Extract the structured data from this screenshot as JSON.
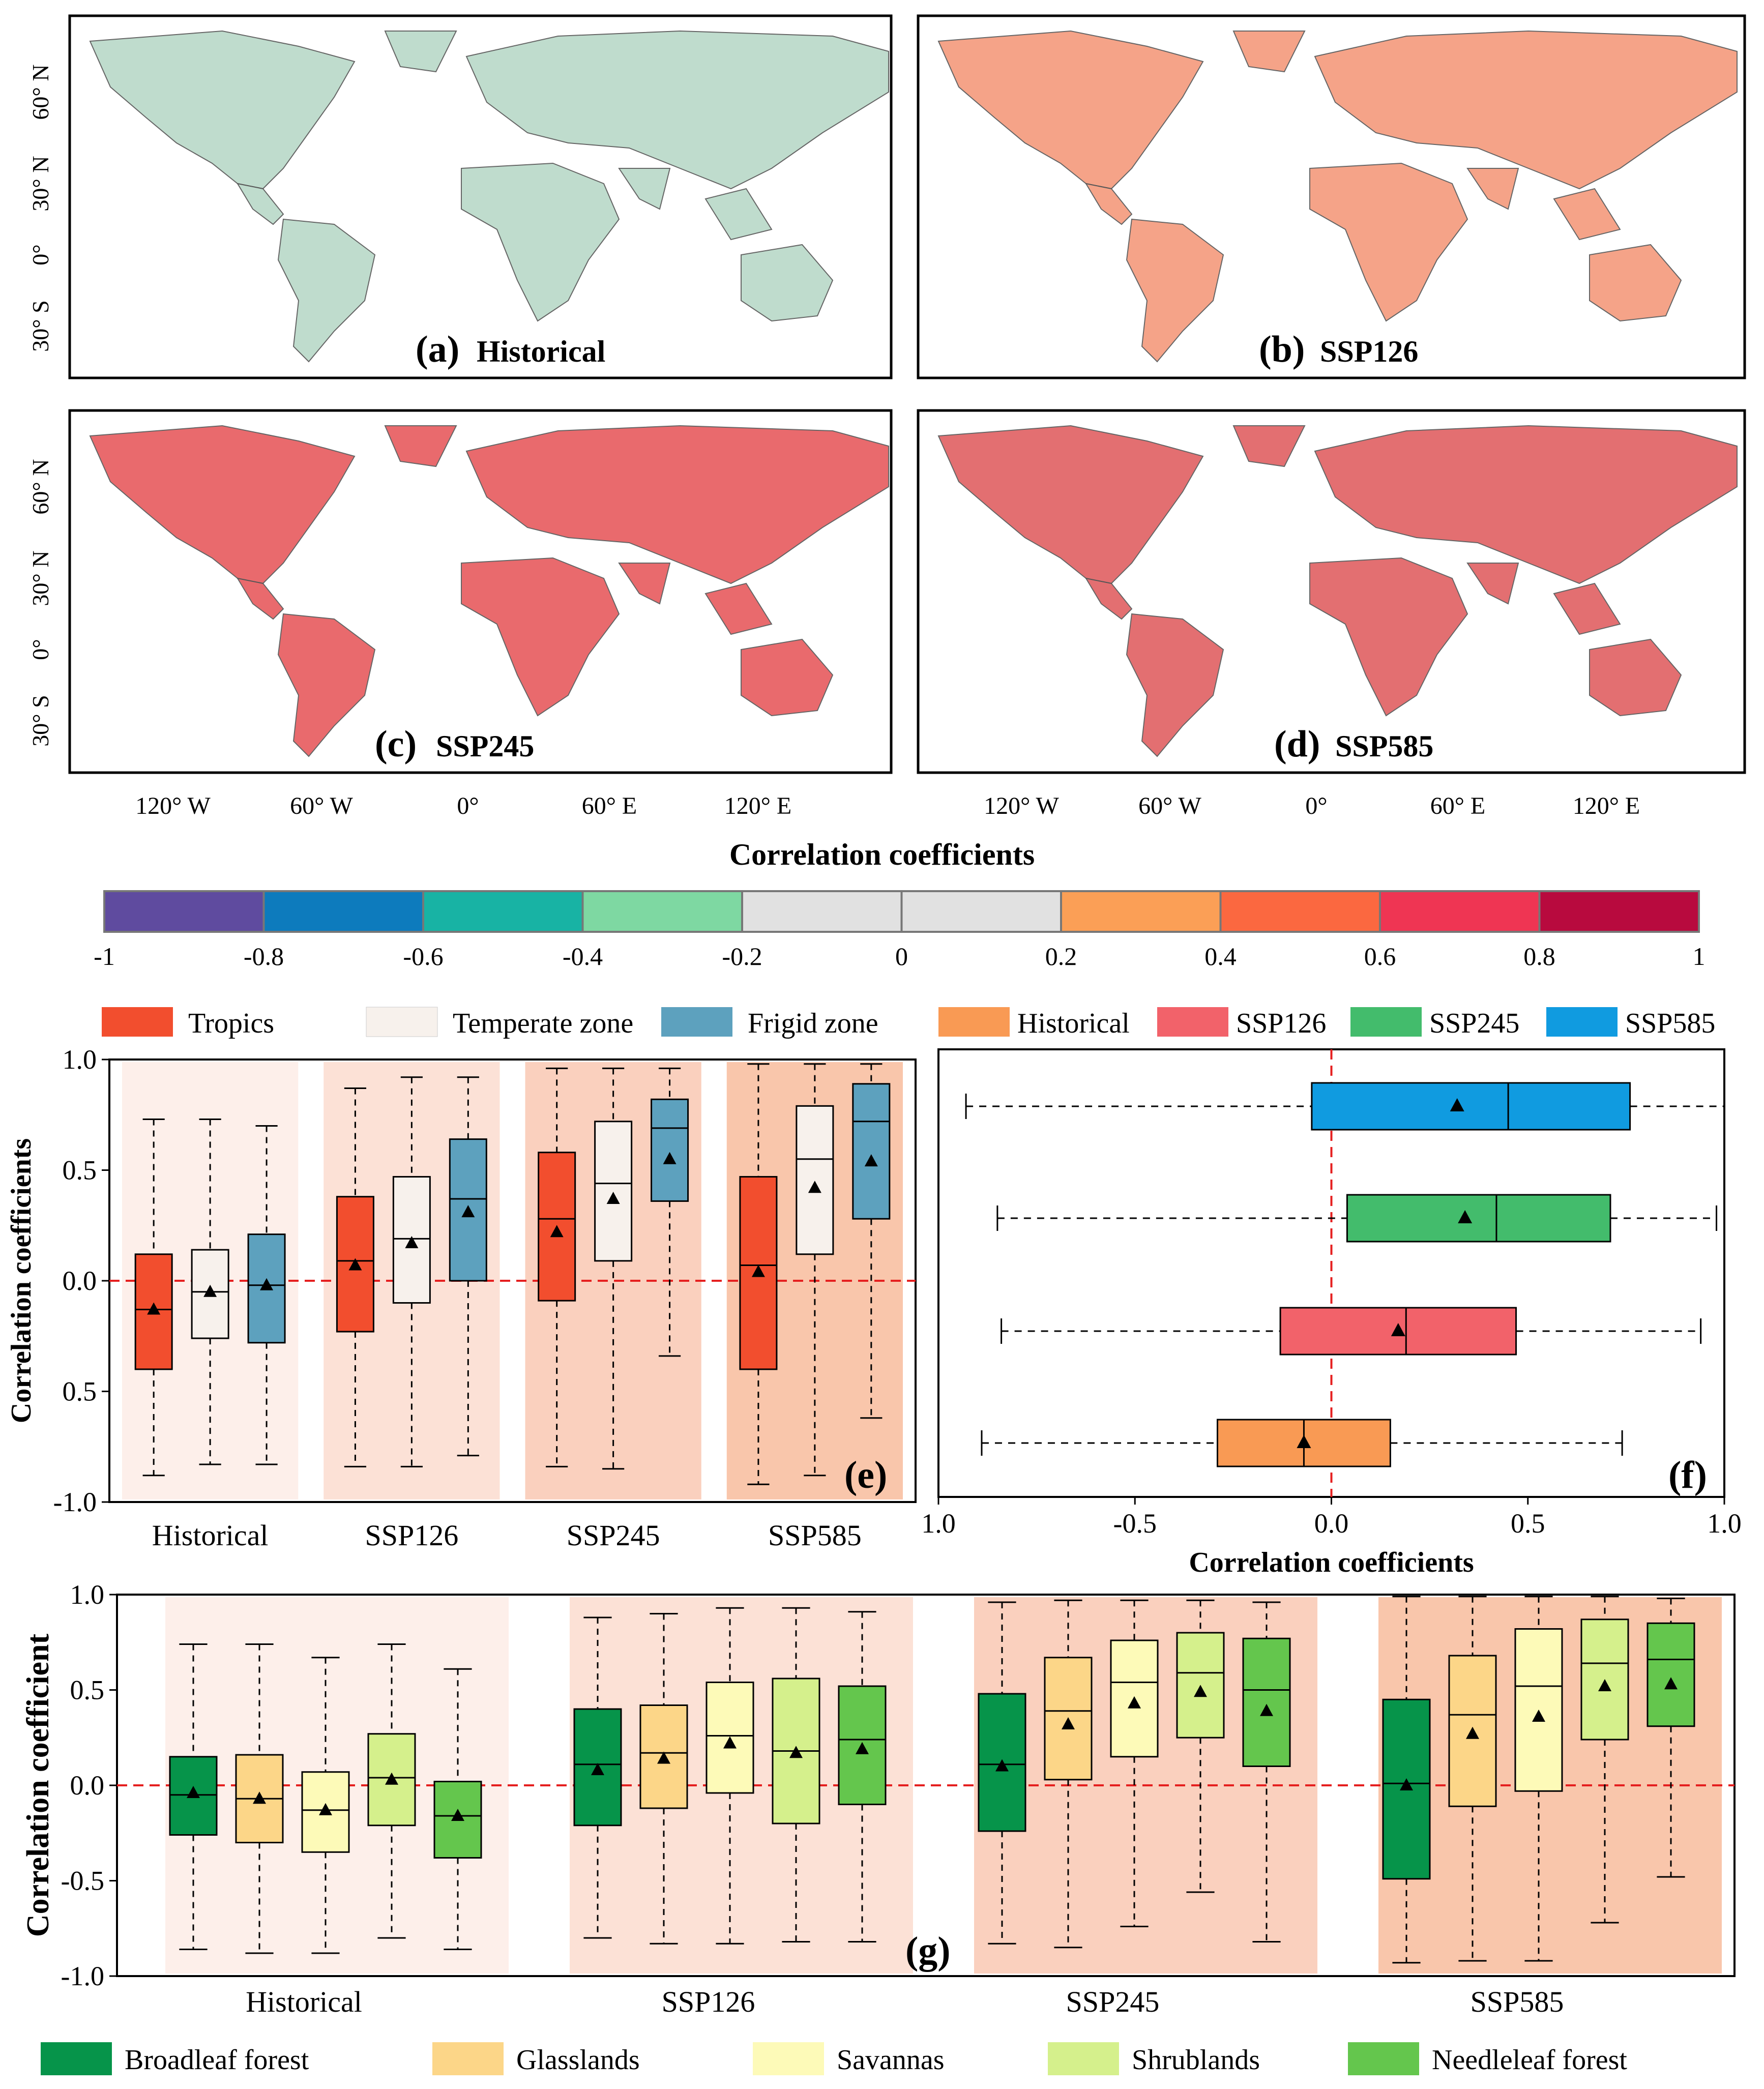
{
  "map_panels": [
    {
      "letter": "(a)",
      "name": "Historical"
    },
    {
      "letter": "(b)",
      "name": "SSP126"
    },
    {
      "letter": "(c)",
      "name": "SSP245"
    },
    {
      "letter": "(d)",
      "name": "SSP585"
    }
  ],
  "map_lat_ticks": [
    "60° N",
    "30° N",
    "0°",
    "30° S"
  ],
  "map_lon_ticks": [
    "120° W",
    "60° W",
    "0°",
    "60° E",
    "120° E"
  ],
  "colorbar": {
    "title": "Correlation coefficients",
    "ticks": [
      "-1",
      "-0.8",
      "-0.6",
      "-0.4",
      "-0.2",
      "0",
      "0.2",
      "0.4",
      "0.6",
      "0.8",
      "1"
    ],
    "colors": [
      "#5f4b9f",
      "#0d7bbd",
      "#18b3a4",
      "#7ed8a2",
      "#e1e1e1",
      "#e1e1e1",
      "#fb9f56",
      "#fb6840",
      "#ef3553",
      "#b80a3e"
    ]
  },
  "chart_data": [
    {
      "panel": "(e)",
      "type": "box",
      "ylabel": "Correlation coefficients",
      "ylim": [
        -1.0,
        1.0
      ],
      "yticks": [
        "1.0",
        "0.5",
        "0.0",
        "0.5",
        "-1.0"
      ],
      "categories": [
        "Historical",
        "SSP126",
        "SSP245",
        "SSP585"
      ],
      "series": [
        {
          "name": "Tropics",
          "color": "#f24e2e",
          "stats": [
            {
              "whislo": -0.88,
              "q1": -0.4,
              "med": -0.13,
              "q3": 0.12,
              "whishi": 0.73,
              "mean": -0.13
            },
            {
              "whislo": -0.84,
              "q1": -0.23,
              "med": 0.09,
              "q3": 0.38,
              "whishi": 0.87,
              "mean": 0.07
            },
            {
              "whislo": -0.84,
              "q1": -0.09,
              "med": 0.28,
              "q3": 0.58,
              "whishi": 0.96,
              "mean": 0.22
            },
            {
              "whislo": -0.92,
              "q1": -0.4,
              "med": 0.07,
              "q3": 0.47,
              "whishi": 0.98,
              "mean": 0.04
            }
          ]
        },
        {
          "name": "Temperate zone",
          "color": "#f7f1ec",
          "stats": [
            {
              "whislo": -0.83,
              "q1": -0.26,
              "med": -0.05,
              "q3": 0.14,
              "whishi": 0.73,
              "mean": -0.05
            },
            {
              "whislo": -0.84,
              "q1": -0.1,
              "med": 0.19,
              "q3": 0.47,
              "whishi": 0.92,
              "mean": 0.17
            },
            {
              "whislo": -0.85,
              "q1": 0.09,
              "med": 0.44,
              "q3": 0.72,
              "whishi": 0.96,
              "mean": 0.37
            },
            {
              "whislo": -0.88,
              "q1": 0.12,
              "med": 0.55,
              "q3": 0.79,
              "whishi": 0.98,
              "mean": 0.42
            }
          ]
        },
        {
          "name": "Frigid zone",
          "color": "#5da1be",
          "stats": [
            {
              "whislo": -0.83,
              "q1": -0.28,
              "med": -0.02,
              "q3": 0.21,
              "whishi": 0.7,
              "mean": -0.02
            },
            {
              "whislo": -0.79,
              "q1": 0.0,
              "med": 0.37,
              "q3": 0.64,
              "whishi": 0.92,
              "mean": 0.31
            },
            {
              "whislo": -0.34,
              "q1": 0.36,
              "med": 0.69,
              "q3": 0.82,
              "whishi": 0.96,
              "mean": 0.55
            },
            {
              "whislo": -0.62,
              "q1": 0.28,
              "med": 0.72,
              "q3": 0.89,
              "whishi": 0.98,
              "mean": 0.54
            }
          ]
        }
      ]
    },
    {
      "panel": "(f)",
      "type": "box-horizontal",
      "xlabel": "Correlation coefficients",
      "xlim": [
        -1.0,
        1.0
      ],
      "xticks": [
        "1.0",
        "-0.5",
        "0.0",
        "0.5",
        "1.0"
      ],
      "series": [
        {
          "name": "Historical",
          "color": "#f99a54",
          "whislo": -0.89,
          "q1": -0.29,
          "med": -0.07,
          "q3": 0.15,
          "whishi": 0.74,
          "mean": -0.07
        },
        {
          "name": "SSP126",
          "color": "#f2626a",
          "whislo": -0.84,
          "q1": -0.13,
          "med": 0.19,
          "q3": 0.47,
          "whishi": 0.94,
          "mean": 0.17
        },
        {
          "name": "SSP245",
          "color": "#43bc6c",
          "whislo": -0.85,
          "q1": 0.04,
          "med": 0.42,
          "q3": 0.71,
          "whishi": 0.98,
          "mean": 0.34
        },
        {
          "name": "SSP585",
          "color": "#109be0",
          "whislo": -0.93,
          "q1": -0.05,
          "med": 0.45,
          "q3": 0.76,
          "whishi": 1.0,
          "mean": 0.32
        }
      ]
    },
    {
      "panel": "(g)",
      "type": "box",
      "ylabel": "Correlation coefficient",
      "ylim": [
        -1.0,
        1.0
      ],
      "yticks": [
        "1.0",
        "0.5",
        "0.0",
        "-0.5",
        "-1.0"
      ],
      "categories": [
        "Historical",
        "SSP126",
        "SSP245",
        "SSP585"
      ],
      "series": [
        {
          "name": "Broadleaf forest",
          "color": "#06944a",
          "stats": [
            {
              "whislo": -0.86,
              "q1": -0.26,
              "med": -0.05,
              "q3": 0.15,
              "whishi": 0.74,
              "mean": -0.04
            },
            {
              "whislo": -0.8,
              "q1": -0.21,
              "med": 0.11,
              "q3": 0.4,
              "whishi": 0.88,
              "mean": 0.08
            },
            {
              "whislo": -0.83,
              "q1": -0.24,
              "med": 0.11,
              "q3": 0.48,
              "whishi": 0.96,
              "mean": 0.1
            },
            {
              "whislo": -0.93,
              "q1": -0.49,
              "med": 0.01,
              "q3": 0.45,
              "whishi": 0.99,
              "mean": 0.0
            }
          ]
        },
        {
          "name": "Glasslands",
          "color": "#fcd688",
          "stats": [
            {
              "whislo": -0.88,
              "q1": -0.3,
              "med": -0.07,
              "q3": 0.16,
              "whishi": 0.74,
              "mean": -0.07
            },
            {
              "whislo": -0.83,
              "q1": -0.12,
              "med": 0.17,
              "q3": 0.42,
              "whishi": 0.9,
              "mean": 0.14
            },
            {
              "whislo": -0.85,
              "q1": 0.03,
              "med": 0.39,
              "q3": 0.67,
              "whishi": 0.97,
              "mean": 0.32
            },
            {
              "whislo": -0.92,
              "q1": -0.11,
              "med": 0.37,
              "q3": 0.68,
              "whishi": 0.99,
              "mean": 0.27
            }
          ]
        },
        {
          "name": "Savannas",
          "color": "#fdfab8",
          "stats": [
            {
              "whislo": -0.88,
              "q1": -0.35,
              "med": -0.13,
              "q3": 0.07,
              "whishi": 0.67,
              "mean": -0.13
            },
            {
              "whislo": -0.83,
              "q1": -0.04,
              "med": 0.26,
              "q3": 0.54,
              "whishi": 0.93,
              "mean": 0.22
            },
            {
              "whislo": -0.74,
              "q1": 0.15,
              "med": 0.54,
              "q3": 0.76,
              "whishi": 0.97,
              "mean": 0.43
            },
            {
              "whislo": -0.92,
              "q1": -0.03,
              "med": 0.52,
              "q3": 0.82,
              "whishi": 0.99,
              "mean": 0.36
            }
          ]
        },
        {
          "name": "Shrublands",
          "color": "#d5f08c",
          "stats": [
            {
              "whislo": -0.8,
              "q1": -0.21,
              "med": 0.04,
              "q3": 0.27,
              "whishi": 0.74,
              "mean": 0.03
            },
            {
              "whislo": -0.82,
              "q1": -0.2,
              "med": 0.18,
              "q3": 0.56,
              "whishi": 0.93,
              "mean": 0.17
            },
            {
              "whislo": -0.56,
              "q1": 0.25,
              "med": 0.59,
              "q3": 0.8,
              "whishi": 0.97,
              "mean": 0.49
            },
            {
              "whislo": -0.72,
              "q1": 0.24,
              "med": 0.64,
              "q3": 0.87,
              "whishi": 0.99,
              "mean": 0.52
            }
          ]
        },
        {
          "name": "Needleleaf forest",
          "color": "#64c64d",
          "stats": [
            {
              "whislo": -0.86,
              "q1": -0.38,
              "med": -0.16,
              "q3": 0.02,
              "whishi": 0.61,
              "mean": -0.16
            },
            {
              "whislo": -0.82,
              "q1": -0.1,
              "med": 0.24,
              "q3": 0.52,
              "whishi": 0.91,
              "mean": 0.19
            },
            {
              "whislo": -0.82,
              "q1": 0.1,
              "med": 0.5,
              "q3": 0.77,
              "whishi": 0.96,
              "mean": 0.39
            },
            {
              "whislo": -0.48,
              "q1": 0.31,
              "med": 0.66,
              "q3": 0.85,
              "whishi": 0.98,
              "mean": 0.53
            }
          ]
        }
      ]
    }
  ],
  "group_bg_colors": [
    "#fdefea",
    "#fce1d6",
    "#fad0be",
    "#f9c6ab"
  ]
}
